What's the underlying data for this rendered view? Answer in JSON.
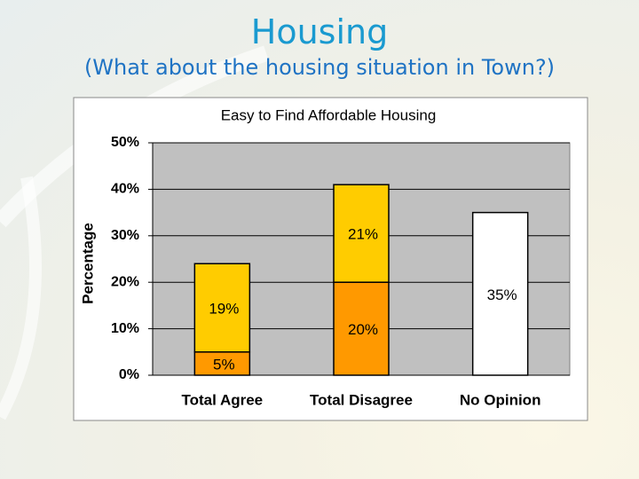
{
  "slide": {
    "title": "Housing",
    "subtitle": "(What about the housing situation in Town?)"
  },
  "chart_data": {
    "type": "stacked_bar",
    "title": "Easy to Find Affordable Housing",
    "y_label": "Percentage",
    "categories": [
      "Total Agree",
      "Total Disagree",
      "No Opinion"
    ],
    "series": [
      {
        "color": "#FF9900",
        "values": [
          5,
          20,
          null
        ],
        "value_labels": [
          "5%",
          "20%",
          null
        ]
      },
      {
        "color": "#FFCC00",
        "values": [
          19,
          21,
          null
        ],
        "value_labels": [
          "19%",
          "21%",
          null
        ]
      },
      {
        "color": "#FFFFFF",
        "values": [
          null,
          null,
          35
        ],
        "value_labels": [
          null,
          null,
          "35%"
        ]
      }
    ],
    "ylim": [
      0,
      50
    ],
    "yticks": [
      {
        "value": 0,
        "label": "0%"
      },
      {
        "value": 10,
        "label": "10%"
      },
      {
        "value": 20,
        "label": "20%"
      },
      {
        "value": 30,
        "label": "30%"
      },
      {
        "value": 40,
        "label": "40%"
      },
      {
        "value": 50,
        "label": "50%"
      }
    ],
    "grid": true
  }
}
